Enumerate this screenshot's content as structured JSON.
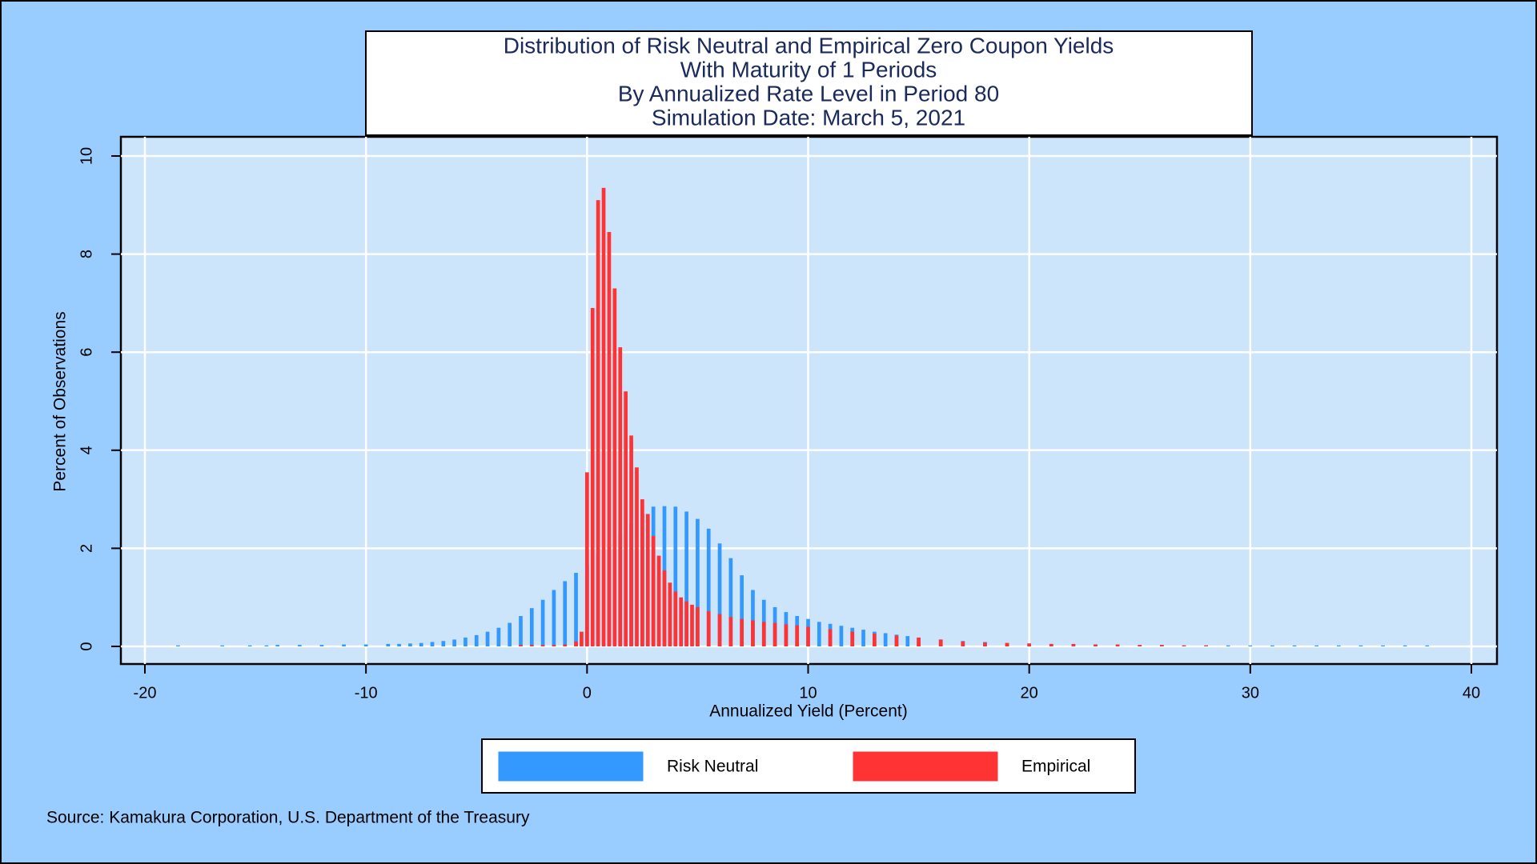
{
  "chart_data": {
    "type": "bar",
    "title": [
      "Distribution of Risk Neutral and Empirical Zero Coupon Yields",
      "With Maturity of 1 Periods",
      "By Annualized Rate Level in Period 80",
      "Simulation Date: March 5, 2021"
    ],
    "x_label": "Annualized Yield (Percent)",
    "y_label": "Percent of Observations",
    "source": "Source: Kamakura Corporation, U.S. Department of the Treasury",
    "xlim": [
      -20,
      40
    ],
    "xticks": [
      -20,
      -10,
      0,
      10,
      20,
      30,
      40
    ],
    "ylim": [
      0,
      10
    ],
    "yticks": [
      0,
      2,
      4,
      6,
      8,
      10
    ],
    "grid": true,
    "legend": "bottom",
    "series": [
      {
        "name": "Risk Neutral",
        "color": "#3399ff",
        "x": [
          -18.5,
          -16.5,
          -15.25,
          -14.5,
          -14,
          -13,
          -12,
          -11,
          -10,
          -9,
          -8.5,
          -8,
          -7.5,
          -7,
          -6.5,
          -6,
          -5.5,
          -5,
          -4.5,
          -4,
          -3.5,
          -3,
          -2.5,
          -2,
          -1.5,
          -1,
          -0.5,
          0,
          0.5,
          1,
          1.5,
          2,
          2.5,
          3,
          3.5,
          4,
          4.5,
          5,
          5.5,
          6,
          6.5,
          7,
          7.5,
          8,
          8.5,
          9,
          9.5,
          10,
          10.5,
          11,
          11.5,
          12,
          12.5,
          13,
          13.5,
          14,
          14.5,
          15,
          16,
          17,
          18,
          19,
          20,
          21,
          22,
          23,
          24,
          25,
          26,
          27,
          28,
          29,
          30,
          31,
          32,
          33,
          34,
          35,
          36,
          37,
          38
        ],
        "values": [
          0.02,
          0.02,
          0.02,
          0.02,
          0.03,
          0.03,
          0.03,
          0.04,
          0.04,
          0.05,
          0.05,
          0.06,
          0.07,
          0.09,
          0.11,
          0.14,
          0.18,
          0.23,
          0.3,
          0.38,
          0.48,
          0.62,
          0.78,
          0.95,
          1.15,
          1.33,
          1.5,
          1.68,
          1.88,
          2.08,
          2.28,
          2.5,
          2.7,
          2.85,
          2.86,
          2.85,
          2.75,
          2.6,
          2.4,
          2.1,
          1.8,
          1.45,
          1.15,
          0.95,
          0.8,
          0.7,
          0.62,
          0.56,
          0.5,
          0.46,
          0.42,
          0.38,
          0.34,
          0.3,
          0.27,
          0.24,
          0.21,
          0.18,
          0.14,
          0.11,
          0.09,
          0.07,
          0.06,
          0.05,
          0.04,
          0.04,
          0.03,
          0.03,
          0.03,
          0.02,
          0.02,
          0.02,
          0.02,
          0.02,
          0.02,
          0.02,
          0.02,
          0.02,
          0.02,
          0.02,
          0.02
        ]
      },
      {
        "name": "Empirical",
        "color": "#ff3333",
        "x": [
          -3,
          -2.5,
          -2,
          -1.5,
          -1,
          -0.5,
          -0.25,
          0,
          0.25,
          0.5,
          0.75,
          1,
          1.25,
          1.5,
          1.75,
          2,
          2.25,
          2.5,
          2.75,
          3,
          3.25,
          3.5,
          3.75,
          4,
          4.25,
          4.5,
          4.75,
          5,
          5.5,
          6,
          6.5,
          7,
          7.5,
          8,
          8.5,
          9,
          9.5,
          10,
          11,
          12,
          13,
          14,
          15,
          16,
          17,
          18,
          19,
          20,
          21,
          22,
          23,
          24,
          25,
          26,
          27,
          28
        ],
        "values": [
          0.03,
          0.03,
          0.03,
          0.03,
          0.04,
          0.1,
          0.3,
          3.55,
          6.9,
          9.1,
          9.35,
          8.45,
          7.3,
          6.1,
          5.2,
          4.3,
          3.65,
          3.0,
          2.7,
          2.25,
          1.85,
          1.55,
          1.3,
          1.12,
          1.0,
          0.92,
          0.85,
          0.8,
          0.72,
          0.66,
          0.6,
          0.56,
          0.53,
          0.5,
          0.48,
          0.45,
          0.43,
          0.4,
          0.35,
          0.3,
          0.26,
          0.22,
          0.18,
          0.14,
          0.1,
          0.08,
          0.07,
          0.06,
          0.05,
          0.05,
          0.04,
          0.04,
          0.03,
          0.03,
          0.02,
          0.02
        ]
      }
    ]
  }
}
